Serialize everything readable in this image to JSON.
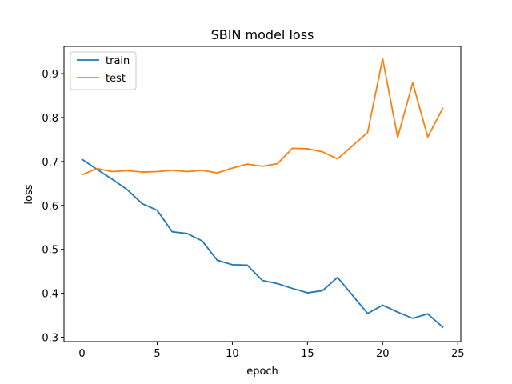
{
  "chart_data": {
    "type": "line",
    "title": "SBIN model loss",
    "xlabel": "epoch",
    "ylabel": "loss",
    "xlim": [
      -1.2,
      25.2
    ],
    "ylim": [
      0.29,
      0.962
    ],
    "xticks": [
      0,
      5,
      10,
      15,
      20,
      25
    ],
    "yticks": [
      0.3,
      0.4,
      0.5,
      0.6,
      0.7,
      0.8,
      0.9
    ],
    "grid": false,
    "legend": "top-left",
    "x": [
      0,
      1,
      2,
      3,
      4,
      5,
      6,
      7,
      8,
      9,
      10,
      11,
      12,
      13,
      14,
      15,
      16,
      17,
      18,
      19,
      20,
      21,
      22,
      23,
      24
    ],
    "series": [
      {
        "name": "train",
        "color": "#1f77b4",
        "values": [
          0.705,
          0.682,
          0.66,
          0.636,
          0.604,
          0.589,
          0.54,
          0.536,
          0.519,
          0.475,
          0.465,
          0.464,
          0.429,
          0.422,
          0.411,
          0.401,
          0.406,
          0.436,
          0.395,
          0.354,
          0.373,
          0.357,
          0.343,
          0.353,
          0.323
        ]
      },
      {
        "name": "test",
        "color": "#ff7f0e",
        "values": [
          0.67,
          0.684,
          0.677,
          0.679,
          0.676,
          0.677,
          0.68,
          0.677,
          0.68,
          0.674,
          0.685,
          0.694,
          0.689,
          0.695,
          0.73,
          0.729,
          0.722,
          0.706,
          0.736,
          0.766,
          0.934,
          0.755,
          0.879,
          0.756,
          0.821
        ]
      }
    ]
  }
}
